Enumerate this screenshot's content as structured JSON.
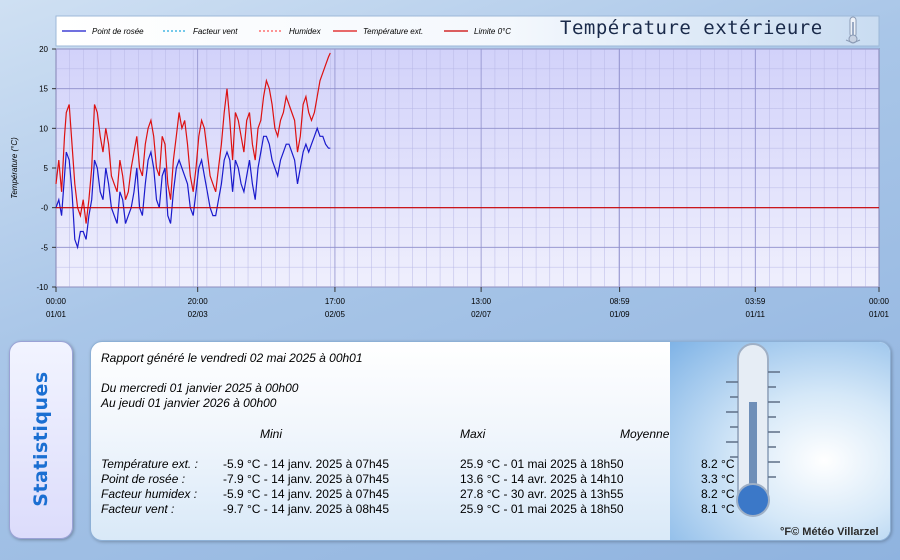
{
  "chart_title": "Température extérieure",
  "credit": "°F© Météo Villarzel",
  "chart_data": {
    "type": "line",
    "title": "Température extérieure",
    "ylabel": "Température (°C)",
    "xlabel": "",
    "ylim": [
      -10,
      20
    ],
    "yticks": [
      20,
      15,
      10,
      5,
      0,
      -5,
      -10
    ],
    "ytick_labels": [
      "20",
      "15",
      "10",
      "5",
      "-0",
      "-5",
      "-10"
    ],
    "xlim_hours": [
      0,
      8760
    ],
    "xticks": [
      {
        "hour": 0,
        "time": "00:00",
        "date": "01/01"
      },
      {
        "hour": 1508,
        "time": "20:00",
        "date": "02/03"
      },
      {
        "hour": 2969,
        "time": "17:00",
        "date": "02/05"
      },
      {
        "hour": 4525,
        "time": "13:00",
        "date": "02/07"
      },
      {
        "hour": 5999,
        "time": "08:59",
        "date": "01/09"
      },
      {
        "hour": 7443,
        "time": "03:59",
        "date": "01/11"
      },
      {
        "hour": 8760,
        "time": "00:00",
        "date": "01/01"
      }
    ],
    "legend": [
      "Point de rosée",
      "Facteur vent",
      "Humidex",
      "Température ext.",
      "Limite 0°C"
    ],
    "legend_placement": "top",
    "grid": true,
    "series": [
      {
        "name": "Température ext.",
        "color": "#dd1111",
        "x": [
          0,
          30,
          60,
          90,
          110,
          140,
          170,
          200,
          230,
          260,
          290,
          320,
          350,
          380,
          410,
          440,
          470,
          500,
          530,
          560,
          590,
          620,
          650,
          680,
          710,
          740,
          770,
          800,
          830,
          860,
          890,
          920,
          950,
          980,
          1010,
          1040,
          1070,
          1100,
          1130,
          1160,
          1190,
          1220,
          1250,
          1280,
          1310,
          1340,
          1370,
          1400,
          1430,
          1460,
          1490,
          1520,
          1550,
          1580,
          1610,
          1640,
          1670,
          1700,
          1730,
          1760,
          1790,
          1820,
          1850,
          1880,
          1910,
          1940,
          1970,
          2000,
          2030,
          2060,
          2090,
          2120,
          2150,
          2180,
          2210,
          2240,
          2270,
          2300,
          2330,
          2360,
          2390,
          2420,
          2450,
          2480,
          2510,
          2540,
          2570,
          2600,
          2630,
          2660,
          2690,
          2720,
          2750,
          2780,
          2810,
          2840,
          2870,
          2900,
          2920
        ],
        "values": [
          3,
          6,
          2,
          9,
          12,
          13,
          8,
          3,
          0,
          -1,
          1,
          -2,
          1,
          5,
          13,
          12,
          9,
          7,
          10,
          8,
          4,
          3,
          2,
          6,
          4,
          1,
          2,
          5,
          7,
          9,
          5,
          4,
          8,
          10,
          11,
          9,
          5,
          4,
          9,
          8,
          3,
          1,
          6,
          9,
          12,
          10,
          11,
          8,
          4,
          2,
          5,
          9,
          11,
          10,
          7,
          4,
          3,
          2,
          5,
          8,
          12,
          15,
          11,
          6,
          12,
          11,
          9,
          7,
          11,
          12,
          8,
          6,
          10,
          11,
          14,
          16,
          15,
          13,
          10,
          9,
          11,
          12,
          14,
          13,
          12,
          11,
          7,
          9,
          13,
          14,
          12,
          11,
          12,
          14,
          16,
          17,
          18,
          19,
          19.5
        ]
      },
      {
        "name": "Point de rosée",
        "color": "#1a1acc",
        "x": [
          0,
          30,
          60,
          90,
          110,
          140,
          170,
          200,
          230,
          260,
          290,
          320,
          350,
          380,
          410,
          440,
          470,
          500,
          530,
          560,
          590,
          620,
          650,
          680,
          710,
          740,
          770,
          800,
          830,
          860,
          890,
          920,
          950,
          980,
          1010,
          1040,
          1070,
          1100,
          1130,
          1160,
          1190,
          1220,
          1250,
          1280,
          1310,
          1340,
          1370,
          1400,
          1430,
          1460,
          1490,
          1520,
          1550,
          1580,
          1610,
          1640,
          1670,
          1700,
          1730,
          1760,
          1790,
          1820,
          1850,
          1880,
          1910,
          1940,
          1970,
          2000,
          2030,
          2060,
          2090,
          2120,
          2150,
          2180,
          2210,
          2240,
          2270,
          2300,
          2330,
          2360,
          2390,
          2420,
          2450,
          2480,
          2510,
          2540,
          2570,
          2600,
          2630,
          2660,
          2690,
          2720,
          2750,
          2780,
          2810,
          2840,
          2870,
          2900,
          2920
        ],
        "values": [
          0,
          1,
          -1,
          4,
          7,
          6,
          2,
          -4,
          -5,
          -3,
          -3,
          -4,
          -1,
          1,
          6,
          5,
          2,
          1,
          5,
          3,
          0,
          -1,
          -2,
          2,
          1,
          -2,
          -1,
          0,
          2,
          5,
          0,
          -1,
          3,
          6,
          7,
          5,
          1,
          0,
          4,
          5,
          -1,
          -2,
          2,
          5,
          6,
          5,
          4,
          3,
          0,
          -1,
          2,
          5,
          6,
          4,
          2,
          0,
          -1,
          -1,
          1,
          3,
          6,
          7,
          6,
          2,
          6,
          5,
          3,
          2,
          4,
          6,
          3,
          1,
          5,
          7,
          9,
          9,
          8,
          6,
          5,
          4,
          6,
          7,
          8,
          8,
          7,
          6,
          3,
          5,
          7,
          8,
          7,
          8,
          9,
          10,
          9,
          9,
          8,
          7.5,
          7.5
        ]
      },
      {
        "name": "Limite 0°C",
        "color": "#cc0000",
        "x": [
          0,
          8760
        ],
        "values": [
          0,
          0
        ]
      }
    ]
  },
  "stats": {
    "side_label": "Statistiques",
    "generated": "Rapport généré le vendredi 02 mai 2025 à 00h01",
    "from": "Du mercredi 01 janvier 2025 à 00h00",
    "to": "Au jeudi 01 janvier 2026 à 00h00",
    "col_mini": "Mini",
    "col_maxi": "Maxi",
    "col_moyenne": "Moyenne",
    "rows": [
      {
        "label": "Température ext. :",
        "mini": "-5.9 °C - 14 janv. 2025 à 07h45",
        "maxi": "25.9 °C - 01 mai 2025 à 18h50",
        "moy": "8.2 °C"
      },
      {
        "label": "Point de rosée :",
        "mini": "-7.9 °C - 14 janv. 2025 à 07h45",
        "maxi": "13.6 °C - 14 avr. 2025 à 14h10",
        "moy": "3.3 °C"
      },
      {
        "label": "Facteur humidex :",
        "mini": "-5.9 °C - 14 janv. 2025 à 07h45",
        "maxi": "27.8 °C - 30 avr. 2025 à 13h55",
        "moy": "8.2 °C"
      },
      {
        "label": "Facteur vent :",
        "mini": "-9.7 °C - 14 janv. 2025 à 08h45",
        "maxi": "25.9 °C - 01 mai 2025 à 18h50",
        "moy": "8.1 °C"
      }
    ]
  },
  "colors": {
    "plot_bg_top": "#d6d6fb",
    "plot_bg_bottom": "#ececfd",
    "legend_dew": "#1a1acc",
    "legend_wind": "#22aadd",
    "legend_humidex": "#ff5555",
    "legend_temp": "#dd1111",
    "legend_limit": "#cc0000"
  }
}
